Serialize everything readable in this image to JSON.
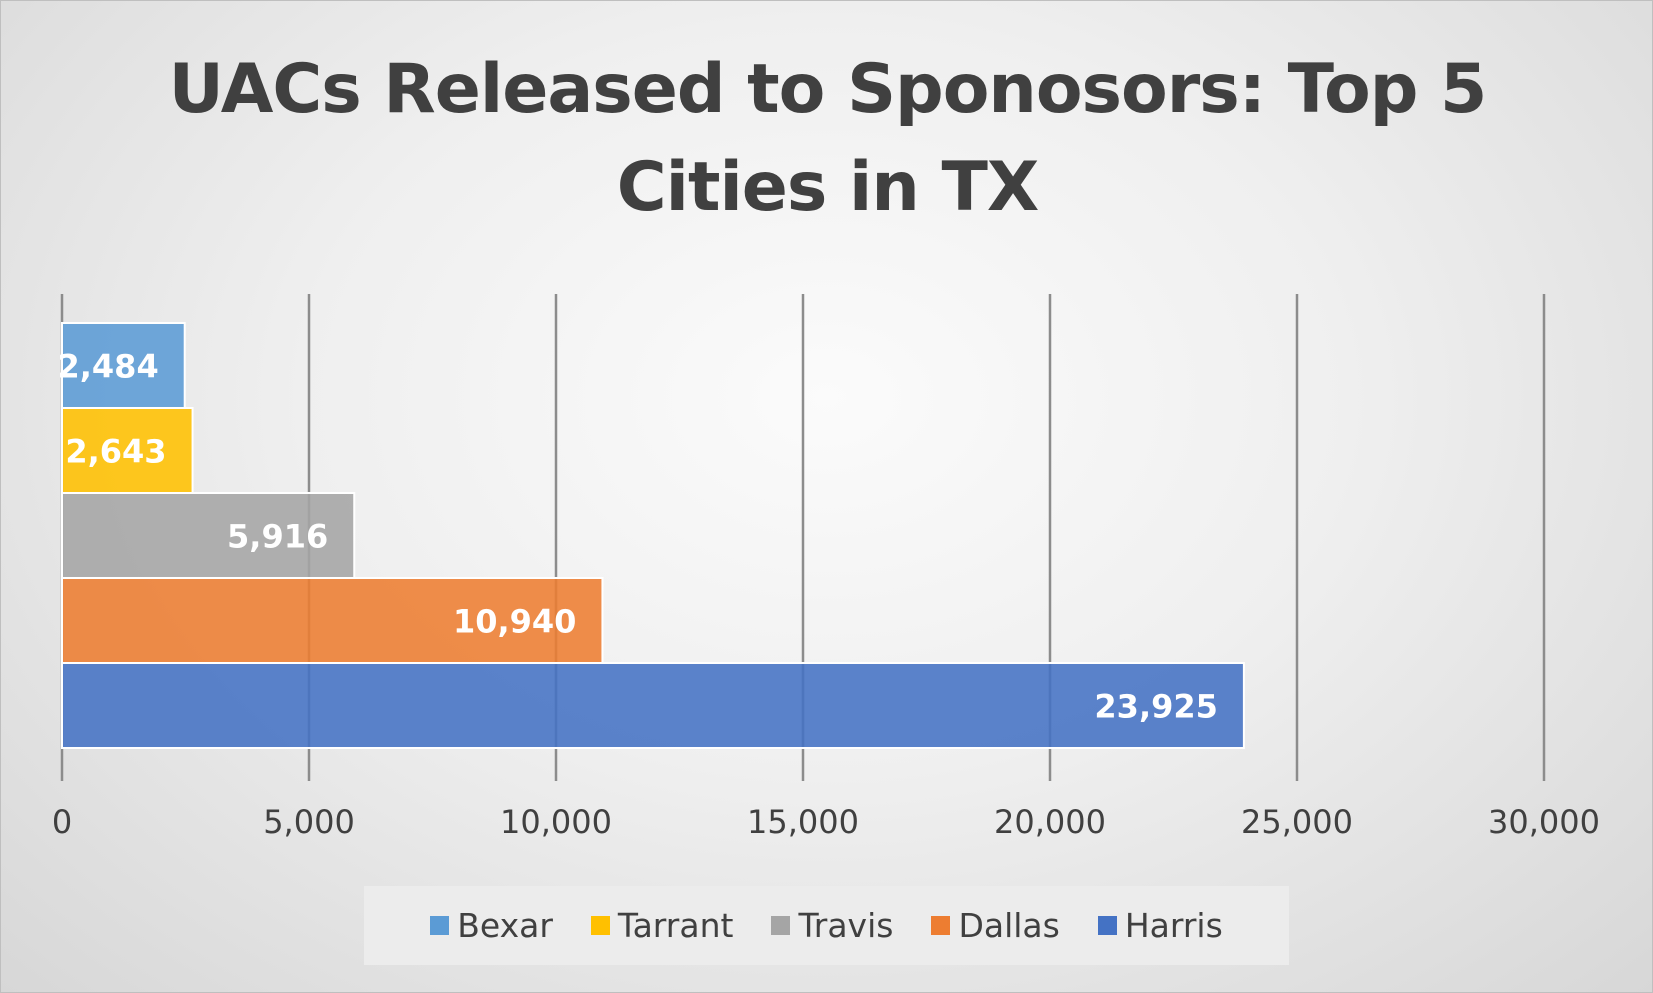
{
  "chart_data": {
    "type": "bar",
    "orientation": "horizontal",
    "title": "UACs Released to Sponosors: Top 5 Cities in TX",
    "xlabel": "",
    "ylabel": "",
    "xlim": [
      0,
      30000
    ],
    "x_ticks": [
      "0",
      "5,000",
      "10,000",
      "15,000",
      "20,000",
      "25,000",
      "30,000"
    ],
    "x_tick_values": [
      0,
      5000,
      10000,
      15000,
      20000,
      25000,
      30000
    ],
    "grid": "vertical",
    "legend_position": "bottom",
    "series": [
      {
        "name": "Bexar",
        "value": 2484,
        "label": "2,484",
        "color": "#5b9bd5"
      },
      {
        "name": "Tarrant",
        "value": 2643,
        "label": "2,643",
        "color": "#ffc000"
      },
      {
        "name": "Travis",
        "value": 5916,
        "label": "5,916",
        "color": "#a5a5a5"
      },
      {
        "name": "Dallas",
        "value": 10940,
        "label": "10,940",
        "color": "#ed7d31"
      },
      {
        "name": "Harris",
        "value": 23925,
        "label": "23,925",
        "color": "#4472c4"
      }
    ]
  }
}
